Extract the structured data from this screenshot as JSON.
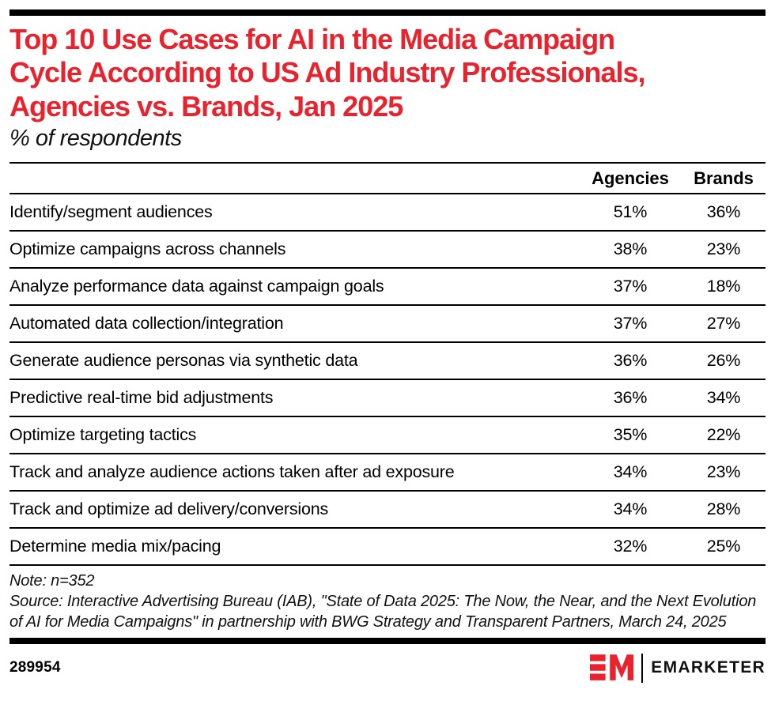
{
  "header": {
    "title_lines": [
      "Top 10 Use Cases for AI in the Media Campaign",
      "Cycle According to US Ad Industry Professionals,",
      "Agencies vs. Brands, Jan 2025"
    ]
  },
  "chart_data": {
    "type": "table",
    "title": "Top 10 Use Cases for AI in the Media Campaign Cycle According to US Ad Industry Professionals, Agencies vs. Brands, Jan 2025",
    "subtitle": "% of respondents",
    "columns": [
      "Agencies",
      "Brands"
    ],
    "categories": [
      "Identify/segment audiences",
      "Optimize campaigns across channels",
      "Analyze performance data against campaign goals",
      "Automated data collection/integration",
      "Generate audience personas via synthetic data",
      "Predictive real-time bid adjustments",
      "Optimize targeting tactics",
      "Track and analyze audience actions taken after ad exposure",
      "Track and optimize ad delivery/conversions",
      "Determine media mix/pacing"
    ],
    "series": [
      {
        "name": "Agencies",
        "values": [
          51,
          38,
          37,
          37,
          36,
          36,
          35,
          34,
          34,
          32
        ]
      },
      {
        "name": "Brands",
        "values": [
          36,
          23,
          18,
          27,
          26,
          34,
          22,
          23,
          28,
          25
        ]
      }
    ],
    "value_unit": "%",
    "note": "Note: n=352",
    "source": "Source: Interactive Advertising Bureau (IAB), \"State of Data 2025: The Now, the Near, and the Next Evolution of AI for Media Campaigns\" in partnership with BWG Strategy and Transparent Partners, March 24, 2025"
  },
  "footer": {
    "chart_id": "289954",
    "brand": "EMARKETER"
  },
  "colors": {
    "accent_red": "#E8232E",
    "text_black": "#000000",
    "rule_black": "#000000",
    "background": "#FFFFFF"
  }
}
